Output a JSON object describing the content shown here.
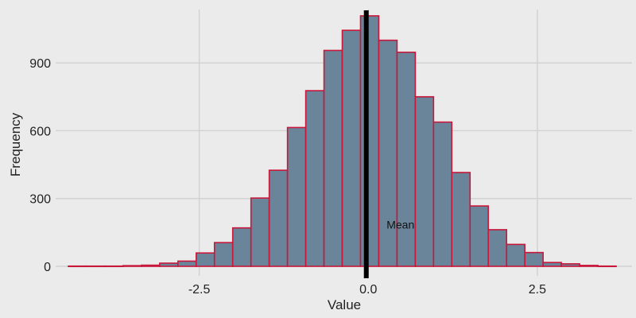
{
  "chart_data": {
    "type": "bar",
    "title": "",
    "xlabel": "Value",
    "ylabel": "Frequency",
    "xlim": [
      -4.6,
      3.9
    ],
    "ylim": [
      0,
      1150
    ],
    "x_ticks": [
      -2.5,
      0.0,
      2.5
    ],
    "x_tick_labels": [
      "-2.5",
      "0.0",
      "2.5"
    ],
    "y_ticks": [
      0,
      300,
      600,
      900
    ],
    "y_tick_labels": [
      "0",
      "300",
      "600",
      "900"
    ],
    "grid": true,
    "bin_width": 0.27,
    "bin_centers": [
      -4.3,
      -4.03,
      -3.76,
      -3.49,
      -3.22,
      -2.95,
      -2.68,
      -2.41,
      -2.14,
      -1.87,
      -1.6,
      -1.33,
      -1.06,
      -0.79,
      -0.52,
      -0.25,
      0.02,
      0.29,
      0.56,
      0.83,
      1.1,
      1.37,
      1.64,
      1.91,
      2.18,
      2.45,
      2.72,
      2.99,
      3.26,
      3.53
    ],
    "values": [
      1,
      1,
      1,
      3,
      5,
      14,
      23,
      59,
      105,
      170,
      302,
      425,
      614,
      777,
      955,
      1044,
      1108,
      1000,
      947,
      750,
      638,
      415,
      267,
      162,
      97,
      61,
      17,
      11,
      4,
      1
    ],
    "bar_fill": "#6a8599",
    "bar_edge": "#c8173a",
    "mean_value": -0.03,
    "mean_line_color": "#000000",
    "annotation": {
      "text": "Mean",
      "x": 0.27,
      "y": 185
    }
  }
}
